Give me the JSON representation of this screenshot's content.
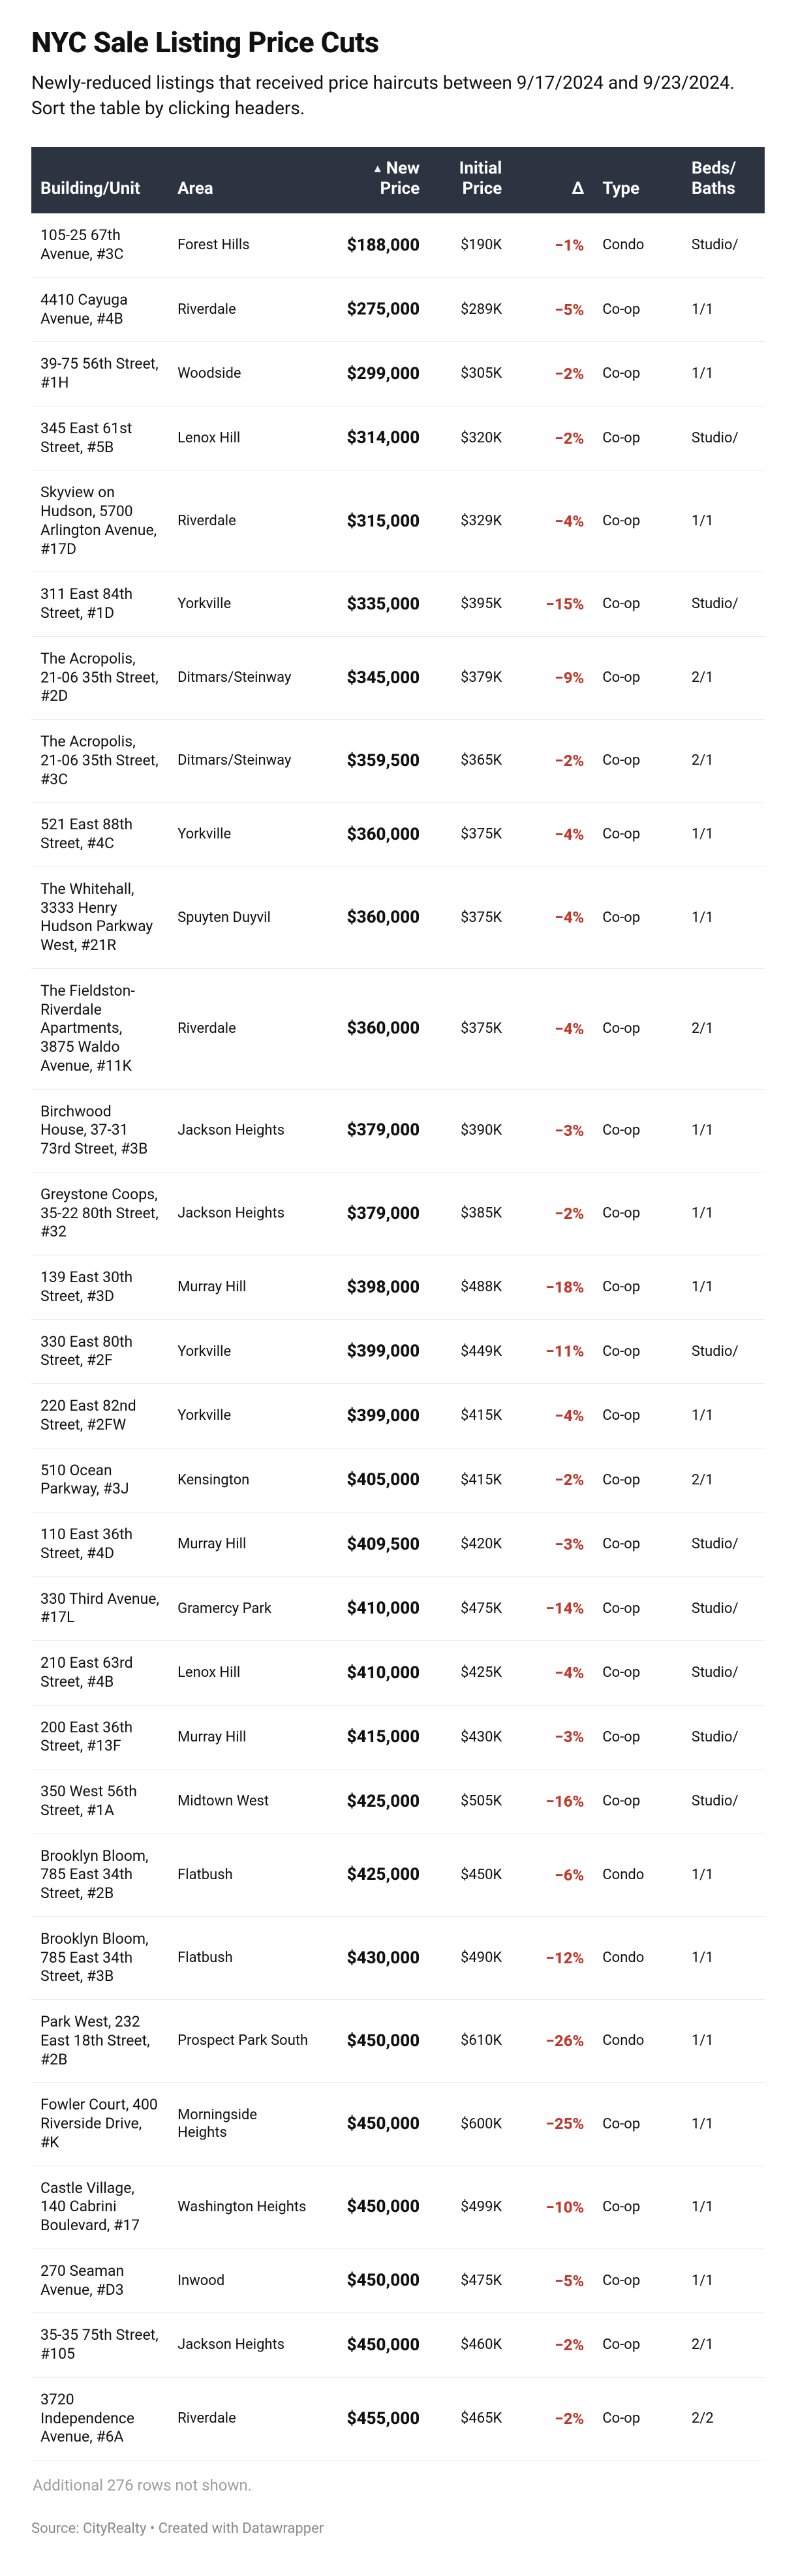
{
  "title": "NYC Sale Listing Price Cuts",
  "intro": "Newly-reduced listings that received price haircuts between 9/17/2024 and 9/23/2024. Sort the table by clicking headers.",
  "colors": {
    "header_bg": "#2b3440",
    "header_fg": "#ffffff",
    "delta": "#c0392b",
    "text": "#111111",
    "muted": "#9e9e9e",
    "row_border": "#ececec"
  },
  "sort": {
    "column": "new_price",
    "direction": "asc",
    "indicator": "▲"
  },
  "columns": {
    "building": "Building/Unit",
    "area": "Area",
    "new_price": "New Price",
    "initial_price": "Initial Price",
    "delta": "Δ",
    "type": "Type",
    "beds_baths": "Beds/ Baths"
  },
  "rows": [
    {
      "building": "105-25 67th Avenue, #3C",
      "area": "Forest Hills",
      "new_price": "$188,000",
      "initial_price": "$190K",
      "delta": "−1%",
      "type": "Condo",
      "bb": "Studio/"
    },
    {
      "building": "4410 Cayuga Avenue, #4B",
      "area": "Riverdale",
      "new_price": "$275,000",
      "initial_price": "$289K",
      "delta": "−5%",
      "type": "Co-op",
      "bb": "1/1"
    },
    {
      "building": "39-75 56th Street, #1H",
      "area": "Woodside",
      "new_price": "$299,000",
      "initial_price": "$305K",
      "delta": "−2%",
      "type": "Co-op",
      "bb": "1/1"
    },
    {
      "building": "345 East 61st Street, #5B",
      "area": "Lenox Hill",
      "new_price": "$314,000",
      "initial_price": "$320K",
      "delta": "−2%",
      "type": "Co-op",
      "bb": "Studio/"
    },
    {
      "building": "Skyview on Hudson, 5700 Arlington Avenue, #17D",
      "area": "Riverdale",
      "new_price": "$315,000",
      "initial_price": "$329K",
      "delta": "−4%",
      "type": "Co-op",
      "bb": "1/1"
    },
    {
      "building": "311 East 84th Street, #1D",
      "area": "Yorkville",
      "new_price": "$335,000",
      "initial_price": "$395K",
      "delta": "−15%",
      "type": "Co-op",
      "bb": "Studio/"
    },
    {
      "building": "The Acropolis, 21-06 35th Street, #2D",
      "area": "Ditmars/Steinway",
      "new_price": "$345,000",
      "initial_price": "$379K",
      "delta": "−9%",
      "type": "Co-op",
      "bb": "2/1"
    },
    {
      "building": "The Acropolis, 21-06 35th Street, #3C",
      "area": "Ditmars/Steinway",
      "new_price": "$359,500",
      "initial_price": "$365K",
      "delta": "−2%",
      "type": "Co-op",
      "bb": "2/1"
    },
    {
      "building": "521 East 88th Street, #4C",
      "area": "Yorkville",
      "new_price": "$360,000",
      "initial_price": "$375K",
      "delta": "−4%",
      "type": "Co-op",
      "bb": "1/1"
    },
    {
      "building": "The Whitehall, 3333 Henry Hudson Parkway West, #21R",
      "area": "Spuyten Duyvil",
      "new_price": "$360,000",
      "initial_price": "$375K",
      "delta": "−4%",
      "type": "Co-op",
      "bb": "1/1"
    },
    {
      "building": "The Fieldston-Riverdale Apartments, 3875 Waldo Avenue, #11K",
      "area": "Riverdale",
      "new_price": "$360,000",
      "initial_price": "$375K",
      "delta": "−4%",
      "type": "Co-op",
      "bb": "2/1"
    },
    {
      "building": "Birchwood House, 37-31 73rd Street, #3B",
      "area": "Jackson Heights",
      "new_price": "$379,000",
      "initial_price": "$390K",
      "delta": "−3%",
      "type": "Co-op",
      "bb": "1/1"
    },
    {
      "building": "Greystone Coops, 35-22 80th Street, #32",
      "area": "Jackson Heights",
      "new_price": "$379,000",
      "initial_price": "$385K",
      "delta": "−2%",
      "type": "Co-op",
      "bb": "1/1"
    },
    {
      "building": "139 East 30th Street, #3D",
      "area": "Murray Hill",
      "new_price": "$398,000",
      "initial_price": "$488K",
      "delta": "−18%",
      "type": "Co-op",
      "bb": "1/1"
    },
    {
      "building": "330 East 80th Street, #2F",
      "area": "Yorkville",
      "new_price": "$399,000",
      "initial_price": "$449K",
      "delta": "−11%",
      "type": "Co-op",
      "bb": "Studio/"
    },
    {
      "building": "220 East 82nd Street, #2FW",
      "area": "Yorkville",
      "new_price": "$399,000",
      "initial_price": "$415K",
      "delta": "−4%",
      "type": "Co-op",
      "bb": "1/1"
    },
    {
      "building": "510 Ocean Parkway, #3J",
      "area": "Kensington",
      "new_price": "$405,000",
      "initial_price": "$415K",
      "delta": "−2%",
      "type": "Co-op",
      "bb": "2/1"
    },
    {
      "building": "110 East 36th Street, #4D",
      "area": "Murray Hill",
      "new_price": "$409,500",
      "initial_price": "$420K",
      "delta": "−3%",
      "type": "Co-op",
      "bb": "Studio/"
    },
    {
      "building": "330 Third Avenue, #17L",
      "area": "Gramercy Park",
      "new_price": "$410,000",
      "initial_price": "$475K",
      "delta": "−14%",
      "type": "Co-op",
      "bb": "Studio/"
    },
    {
      "building": "210 East 63rd Street, #4B",
      "area": "Lenox Hill",
      "new_price": "$410,000",
      "initial_price": "$425K",
      "delta": "−4%",
      "type": "Co-op",
      "bb": "Studio/"
    },
    {
      "building": "200 East 36th Street, #13F",
      "area": "Murray Hill",
      "new_price": "$415,000",
      "initial_price": "$430K",
      "delta": "−3%",
      "type": "Co-op",
      "bb": "Studio/"
    },
    {
      "building": "350 West 56th Street, #1A",
      "area": "Midtown West",
      "new_price": "$425,000",
      "initial_price": "$505K",
      "delta": "−16%",
      "type": "Co-op",
      "bb": "Studio/"
    },
    {
      "building": "Brooklyn Bloom, 785 East 34th Street, #2B",
      "area": "Flatbush",
      "new_price": "$425,000",
      "initial_price": "$450K",
      "delta": "−6%",
      "type": "Condo",
      "bb": "1/1"
    },
    {
      "building": "Brooklyn Bloom, 785 East 34th Street, #3B",
      "area": "Flatbush",
      "new_price": "$430,000",
      "initial_price": "$490K",
      "delta": "−12%",
      "type": "Condo",
      "bb": "1/1"
    },
    {
      "building": "Park West, 232 East 18th Street, #2B",
      "area": "Prospect Park South",
      "new_price": "$450,000",
      "initial_price": "$610K",
      "delta": "−26%",
      "type": "Condo",
      "bb": "1/1"
    },
    {
      "building": "Fowler Court, 400 Riverside Drive, #K",
      "area": "Morningside Heights",
      "new_price": "$450,000",
      "initial_price": "$600K",
      "delta": "−25%",
      "type": "Co-op",
      "bb": "1/1"
    },
    {
      "building": "Castle Village, 140 Cabrini Boulevard, #17",
      "area": "Washington Heights",
      "new_price": "$450,000",
      "initial_price": "$499K",
      "delta": "−10%",
      "type": "Co-op",
      "bb": "1/1"
    },
    {
      "building": "270 Seaman Avenue, #D3",
      "area": "Inwood",
      "new_price": "$450,000",
      "initial_price": "$475K",
      "delta": "−5%",
      "type": "Co-op",
      "bb": "1/1"
    },
    {
      "building": "35-35 75th Street, #105",
      "area": "Jackson Heights",
      "new_price": "$450,000",
      "initial_price": "$460K",
      "delta": "−2%",
      "type": "Co-op",
      "bb": "2/1"
    },
    {
      "building": "3720 Independence Avenue, #6A",
      "area": "Riverdale",
      "new_price": "$455,000",
      "initial_price": "$465K",
      "delta": "−2%",
      "type": "Co-op",
      "bb": "2/2"
    }
  ],
  "more_rows": "Additional 276 rows not shown.",
  "source": "Source: CityRealty • Created with Datawrapper"
}
